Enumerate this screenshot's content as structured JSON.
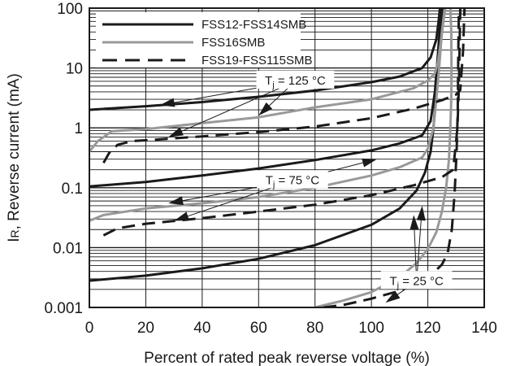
{
  "chart_data": {
    "type": "line",
    "xlabel": "Percent of rated peak reverse voltage (%)",
    "ylabel": "I",
    "ylabel_sub": "R",
    "ylabel_rest": ", Reverse current (mA)",
    "xlim": [
      0,
      140
    ],
    "ylim": [
      0.001,
      100
    ],
    "yscale": "log",
    "grid": true,
    "legend_position": "top-left",
    "x_ticks": [
      "0",
      "20",
      "40",
      "60",
      "80",
      "100",
      "120",
      "140"
    ],
    "y_ticks": [
      "0.001",
      "0.01",
      "0.1",
      "1",
      "10",
      "100"
    ],
    "series": [
      {
        "name": "FSS12-FSS14SMB",
        "style": "solid",
        "color": "#1a1a1a",
        "temperature": "125",
        "x": [
          0,
          20,
          40,
          60,
          80,
          100,
          110,
          118,
          121,
          123,
          123.8,
          124.3
        ],
        "y": [
          2.0,
          2.3,
          2.7,
          3.3,
          4.2,
          5.8,
          7.2,
          10,
          15,
          30,
          60,
          100
        ]
      },
      {
        "name": "FSS12-FSS14SMB",
        "style": "solid",
        "color": "#1a1a1a",
        "temperature": "75",
        "x": [
          0,
          20,
          40,
          60,
          80,
          100,
          110,
          118,
          121,
          122.5,
          123.5,
          124.3,
          125
        ],
        "y": [
          0.105,
          0.125,
          0.16,
          0.21,
          0.29,
          0.42,
          0.55,
          0.75,
          1.3,
          4,
          15,
          50,
          100
        ]
      },
      {
        "name": "FSS12-FSS14SMB",
        "style": "solid",
        "color": "#1a1a1a",
        "temperature": "25",
        "x": [
          0,
          20,
          40,
          60,
          80,
          100,
          110,
          116,
          119,
          121,
          122,
          122.5,
          123,
          123.6,
          124.5,
          125.5
        ],
        "y": [
          0.0028,
          0.0034,
          0.0045,
          0.0065,
          0.011,
          0.024,
          0.045,
          0.09,
          0.18,
          0.4,
          1,
          2,
          5,
          15,
          50,
          100
        ]
      },
      {
        "name": "FSS16SMB",
        "style": "solid",
        "color": "#999999",
        "temperature": "125",
        "x": [
          0,
          3,
          8,
          20,
          40,
          60,
          80,
          100,
          115,
          120,
          122.5,
          123.5,
          124.5,
          125.5,
          126.2
        ],
        "y": [
          0.4,
          0.6,
          0.88,
          0.95,
          1.2,
          1.5,
          2.2,
          3.0,
          4.6,
          6.2,
          8.2,
          12,
          25,
          60,
          100
        ]
      },
      {
        "name": "FSS16SMB",
        "style": "solid",
        "color": "#999999",
        "temperature": "75",
        "x": [
          0,
          5,
          20,
          40,
          60,
          80,
          100,
          110,
          118,
          120,
          122,
          123,
          124,
          125,
          126
        ],
        "y": [
          0.028,
          0.035,
          0.045,
          0.055,
          0.07,
          0.1,
          0.16,
          0.22,
          0.32,
          0.45,
          1,
          3,
          10,
          40,
          100
        ]
      },
      {
        "name": "FSS16SMB",
        "style": "solid",
        "color": "#999999",
        "temperature": "25",
        "x": [
          80,
          90,
          100,
          110,
          116,
          120,
          123,
          125,
          126.5,
          127.5,
          128,
          128.3,
          128.4,
          128.3,
          128
        ],
        "y": [
          0.001,
          0.0013,
          0.0018,
          0.0032,
          0.0055,
          0.0095,
          0.018,
          0.04,
          0.1,
          0.3,
          1,
          3,
          10,
          40,
          100
        ]
      },
      {
        "name": "FSS19-FSS115SMB",
        "style": "dashed",
        "color": "#1a1a1a",
        "temperature": "125",
        "x": [
          5,
          7,
          10,
          15,
          20,
          40,
          60,
          80,
          100,
          115,
          125,
          130,
          131.5,
          132.5,
          133
        ],
        "y": [
          0.26,
          0.38,
          0.52,
          0.6,
          0.62,
          0.72,
          0.85,
          1.05,
          1.45,
          2.1,
          2.9,
          3.6,
          4.3,
          20,
          100
        ]
      },
      {
        "name": "FSS19-FSS115SMB",
        "style": "dashed",
        "color": "#1a1a1a",
        "temperature": "75",
        "x": [
          5,
          10,
          20,
          40,
          60,
          80,
          100,
          115,
          125,
          129,
          130.5,
          131,
          131.3,
          131.5
        ],
        "y": [
          0.016,
          0.021,
          0.025,
          0.031,
          0.04,
          0.052,
          0.075,
          0.11,
          0.15,
          0.2,
          1,
          5,
          30,
          100
        ]
      },
      {
        "name": "FSS19-FSS115SMB",
        "style": "dashed",
        "color": "#1a1a1a",
        "temperature": "25",
        "x": [
          83,
          90,
          100,
          110,
          118,
          122,
          125,
          127,
          128.5,
          129.5,
          130.2,
          130.6,
          130.8,
          131
        ],
        "y": [
          0.001,
          0.0011,
          0.0014,
          0.0019,
          0.0028,
          0.0038,
          0.0052,
          0.008,
          0.02,
          0.08,
          0.4,
          2,
          20,
          100
        ]
      }
    ],
    "legend": [
      {
        "label": "FSS12-FSS14SMB",
        "style": "solid",
        "color": "#1a1a1a"
      },
      {
        "label": "FSS16SMB",
        "style": "solid",
        "color": "#999999"
      },
      {
        "label": "FSS19-FSS115SMB",
        "style": "dashed",
        "color": "#1a1a1a"
      }
    ],
    "annotations": [
      {
        "text_main": "T",
        "text_sub": "j",
        "text_rest": " = 125 °C",
        "x": 73,
        "y": 6.0,
        "arrows": [
          [
            25,
            2.4
          ],
          [
            60,
            1.6
          ],
          [
            28,
            0.7
          ]
        ]
      },
      {
        "text_main": "T",
        "text_sub": "j",
        "text_rest": " = 75 °C",
        "x": 72,
        "y": 0.13,
        "arrows": [
          [
            102,
            0.3
          ],
          [
            28,
            0.055
          ],
          [
            30,
            0.028
          ]
        ]
      },
      {
        "text_main": "T",
        "text_sub": "j",
        "text_rest": " = 25 °C",
        "x": 116,
        "y": 0.0027,
        "arrows": [
          [
            115,
            0.035
          ],
          [
            118,
            0.05
          ],
          [
            105,
            0.0012
          ],
          [
            124,
            0.0024
          ]
        ]
      }
    ]
  }
}
